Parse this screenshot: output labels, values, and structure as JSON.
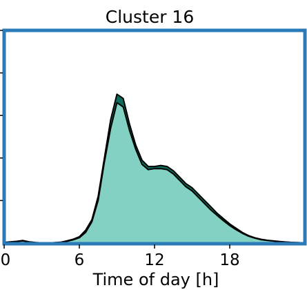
{
  "chart_data": {
    "type": "area",
    "title": "Cluster 16",
    "xlabel": "Time of day [h]",
    "ylabel": "",
    "xlim": [
      0,
      24
    ],
    "ylim": [
      0,
      1
    ],
    "x_ticks": [
      0,
      6,
      12,
      18
    ],
    "x_tick_labels": [
      "0",
      "6",
      "12",
      "18"
    ],
    "y_ticks": [
      0.2,
      0.4,
      0.6,
      0.8,
      1.0
    ],
    "grid": false,
    "frame_color": "#2b7bb9",
    "series": [
      {
        "color": "#0d6b5b",
        "x": [
          0,
          0.5,
          1,
          1.5,
          2,
          2.5,
          3,
          3.5,
          4,
          4.5,
          5,
          5.5,
          6,
          6.5,
          7,
          7.5,
          8,
          8.5,
          9,
          9.5,
          10,
          10.5,
          11,
          11.5,
          12,
          12.5,
          13,
          13.5,
          14,
          14.5,
          15,
          15.5,
          16,
          16.5,
          17,
          17.5,
          18,
          18.5,
          19,
          19.5,
          20,
          20.5,
          21,
          21.5,
          22,
          22.5,
          23,
          23.5,
          24
        ],
        "values": [
          0.003,
          0.006,
          0.008,
          0.012,
          0.006,
          0.003,
          0.001,
          0.001,
          0.002,
          0.004,
          0.01,
          0.018,
          0.03,
          0.06,
          0.11,
          0.22,
          0.4,
          0.58,
          0.7,
          0.68,
          0.56,
          0.46,
          0.39,
          0.36,
          0.36,
          0.365,
          0.36,
          0.34,
          0.31,
          0.28,
          0.26,
          0.23,
          0.2,
          0.17,
          0.14,
          0.115,
          0.09,
          0.07,
          0.05,
          0.035,
          0.025,
          0.018,
          0.013,
          0.01,
          0.007,
          0.005,
          0.003,
          0.002,
          0.001
        ]
      },
      {
        "color": "#83d1c2",
        "x": [
          0,
          0.5,
          1,
          1.5,
          2,
          2.5,
          3,
          3.5,
          4,
          4.5,
          5,
          5.5,
          6,
          6.5,
          7,
          7.5,
          8,
          8.5,
          9,
          9.5,
          10,
          10.5,
          11,
          11.5,
          12,
          12.5,
          13,
          13.5,
          14,
          14.5,
          15,
          15.5,
          16,
          16.5,
          17,
          17.5,
          18,
          18.5,
          19,
          19.5,
          20,
          20.5,
          21,
          21.5,
          22,
          22.5,
          23,
          23.5,
          24
        ],
        "values": [
          0.002,
          0.005,
          0.007,
          0.01,
          0.005,
          0.002,
          0.001,
          0.001,
          0.002,
          0.003,
          0.008,
          0.015,
          0.025,
          0.05,
          0.1,
          0.2,
          0.38,
          0.54,
          0.66,
          0.64,
          0.53,
          0.44,
          0.37,
          0.345,
          0.35,
          0.35,
          0.345,
          0.325,
          0.295,
          0.265,
          0.245,
          0.215,
          0.185,
          0.155,
          0.13,
          0.105,
          0.082,
          0.063,
          0.046,
          0.032,
          0.023,
          0.016,
          0.012,
          0.009,
          0.006,
          0.004,
          0.003,
          0.002,
          0.001
        ]
      }
    ]
  }
}
